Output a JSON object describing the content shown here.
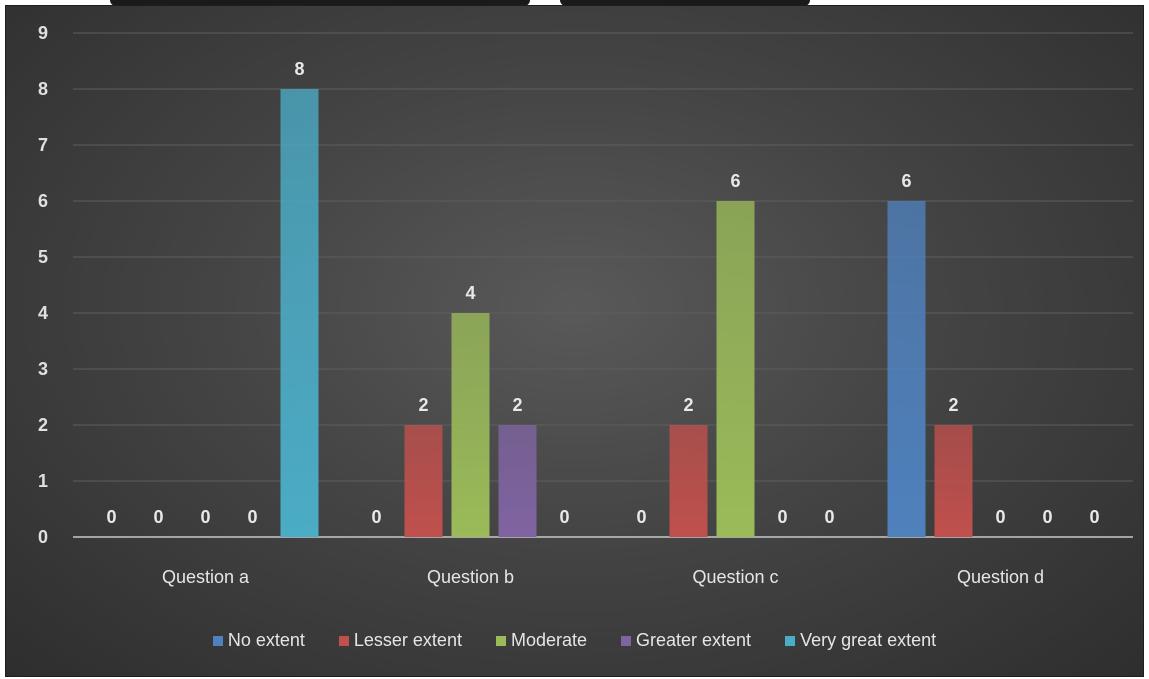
{
  "chart_data": {
    "type": "bar",
    "title": "",
    "xlabel": "",
    "ylabel": "",
    "ylim": [
      0,
      9
    ],
    "yticks": [
      0,
      1,
      2,
      3,
      4,
      5,
      6,
      7,
      8,
      9
    ],
    "grid": true,
    "legend_position": "bottom",
    "data_labels": true,
    "categories": [
      "Question a",
      "Question b",
      "Question c",
      "Question d"
    ],
    "series": [
      {
        "name": "No extent",
        "color": "#4f81bd",
        "values": [
          0,
          0,
          0,
          6
        ]
      },
      {
        "name": "Lesser extent",
        "color": "#c0504d",
        "values": [
          0,
          2,
          2,
          2
        ]
      },
      {
        "name": "Moderate",
        "color": "#9bbb59",
        "values": [
          0,
          4,
          6,
          0
        ]
      },
      {
        "name": "Greater extent",
        "color": "#8064a2",
        "values": [
          0,
          2,
          0,
          0
        ]
      },
      {
        "name": "Very great extent",
        "color": "#4bacc6",
        "values": [
          8,
          0,
          0,
          0
        ]
      }
    ]
  }
}
